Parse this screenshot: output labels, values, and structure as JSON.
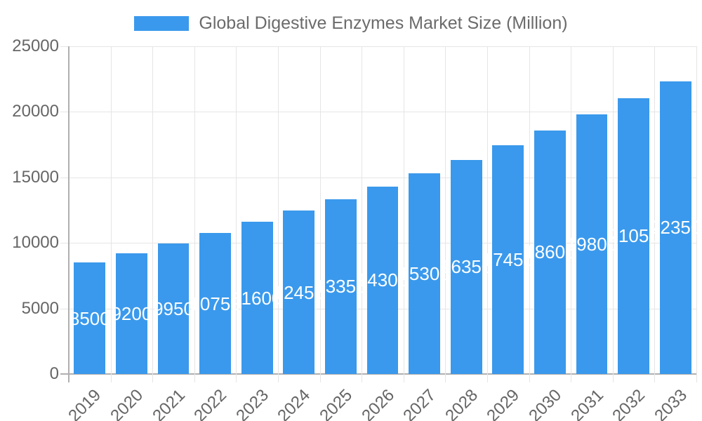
{
  "legend": {
    "label": "Global Digestive Enzymes Market Size (Million)"
  },
  "chart_data": {
    "type": "bar",
    "title": "Global Digestive Enzymes Market Size (Million)",
    "categories": [
      "2019",
      "2020",
      "2021",
      "2022",
      "2023",
      "2024",
      "2025",
      "2026",
      "2027",
      "2028",
      "2029",
      "2030",
      "2031",
      "2032",
      "2033"
    ],
    "values": [
      8500,
      9200,
      9950,
      10750,
      11600,
      12450,
      13350,
      14300,
      15300,
      16350,
      17450,
      18600,
      19800,
      21050,
      22350
    ],
    "xlabel": "",
    "ylabel": "",
    "ylim": [
      0,
      25000
    ],
    "yticks": [
      0,
      5000,
      10000,
      15000,
      20000,
      25000
    ],
    "grid": true,
    "legend_position": "top",
    "bar_labels_visible": true,
    "colors": {
      "bar": "#3a99ec",
      "bar_value_text": "#ffffff",
      "grid": "#e5e5e5",
      "axis": "#b0b0b0",
      "tick_text": "#666666",
      "legend_text": "#6b6b6b"
    }
  }
}
